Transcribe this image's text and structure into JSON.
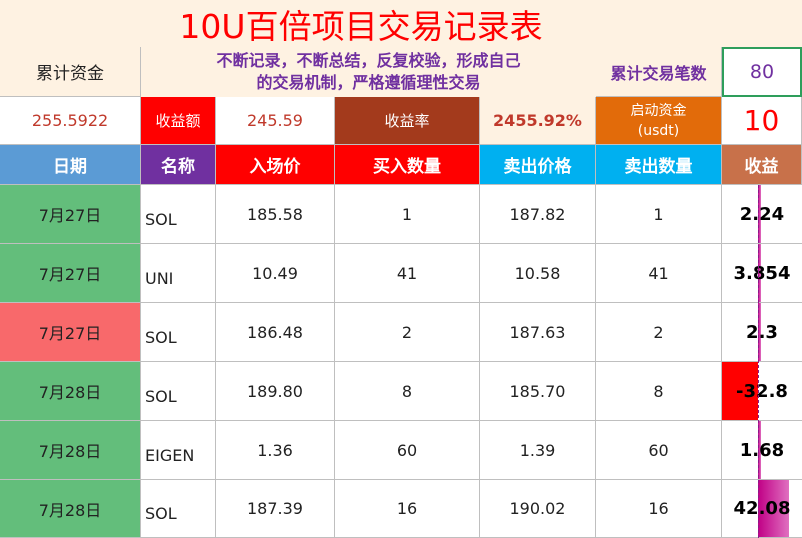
{
  "title": "10U百倍项目交易记录表",
  "motto_line1": "不断记录，不断总结，反复校验，形成自己",
  "motto_line2": "的交易机制，严格遵循理性交易",
  "summary": {
    "cum_funds_label": "累计资金",
    "cum_funds_value": "255.5922",
    "profit_amount_label": "收益额",
    "profit_amount_value": "245.59",
    "profit_rate_label": "收益率",
    "profit_rate_value": "2455.92%",
    "trade_count_label": "累计交易笔数",
    "trade_count_value": "80",
    "start_funds_label_1": "启动资金",
    "start_funds_label_2": "(usdt)",
    "start_funds_value": "10"
  },
  "columns": [
    "日期",
    "名称",
    "入场价",
    "买入数量",
    "卖出价格",
    "卖出数量",
    "收益"
  ],
  "rows": [
    {
      "date": "7月27日",
      "name": "SOL",
      "entry": "185.58",
      "buy_qty": "1",
      "sell_price": "187.82",
      "sell_qty": "1",
      "profit": "2.24",
      "profit_value": 2.24,
      "date_bg": "#63be7b"
    },
    {
      "date": "7月27日",
      "name": "UNI",
      "entry": "10.49",
      "buy_qty": "41",
      "sell_price": "10.58",
      "sell_qty": "41",
      "profit": "3.854",
      "profit_value": 3.854,
      "date_bg": "#63be7b"
    },
    {
      "date": "7月27日",
      "name": "SOL",
      "entry": "186.48",
      "buy_qty": "2",
      "sell_price": "187.63",
      "sell_qty": "2",
      "profit": "2.3",
      "profit_value": 2.3,
      "date_bg": "#f8696b"
    },
    {
      "date": "7月28日",
      "name": "SOL",
      "entry": "189.80",
      "buy_qty": "8",
      "sell_price": "185.70",
      "sell_qty": "8",
      "profit": "-32.8",
      "profit_value": -32.8,
      "date_bg": "#63be7b"
    },
    {
      "date": "7月28日",
      "name": "EIGEN",
      "entry": "1.36",
      "buy_qty": "60",
      "sell_price": "1.39",
      "sell_qty": "60",
      "profit": "1.68",
      "profit_value": 1.68,
      "date_bg": "#63be7b"
    },
    {
      "date": "7月28日",
      "name": "SOL",
      "entry": "187.39",
      "buy_qty": "16",
      "sell_price": "190.02",
      "sell_qty": "16",
      "profit": "42.08",
      "profit_value": 42.08,
      "date_bg": "#63be7b"
    }
  ],
  "colors": {
    "title_red": "#ff0000",
    "motto_purple": "#7030a0",
    "date_header": "#5b9bd5",
    "name_header": "#7030a0",
    "entry_header": "#ff0000",
    "buy_header": "#ff0000",
    "sell_price_header": "#00b0f0",
    "sell_qty_header": "#00b0f0",
    "profit_header": "#c65911",
    "positive_bar": "#c00086",
    "negative_bar": "#ff0000"
  }
}
